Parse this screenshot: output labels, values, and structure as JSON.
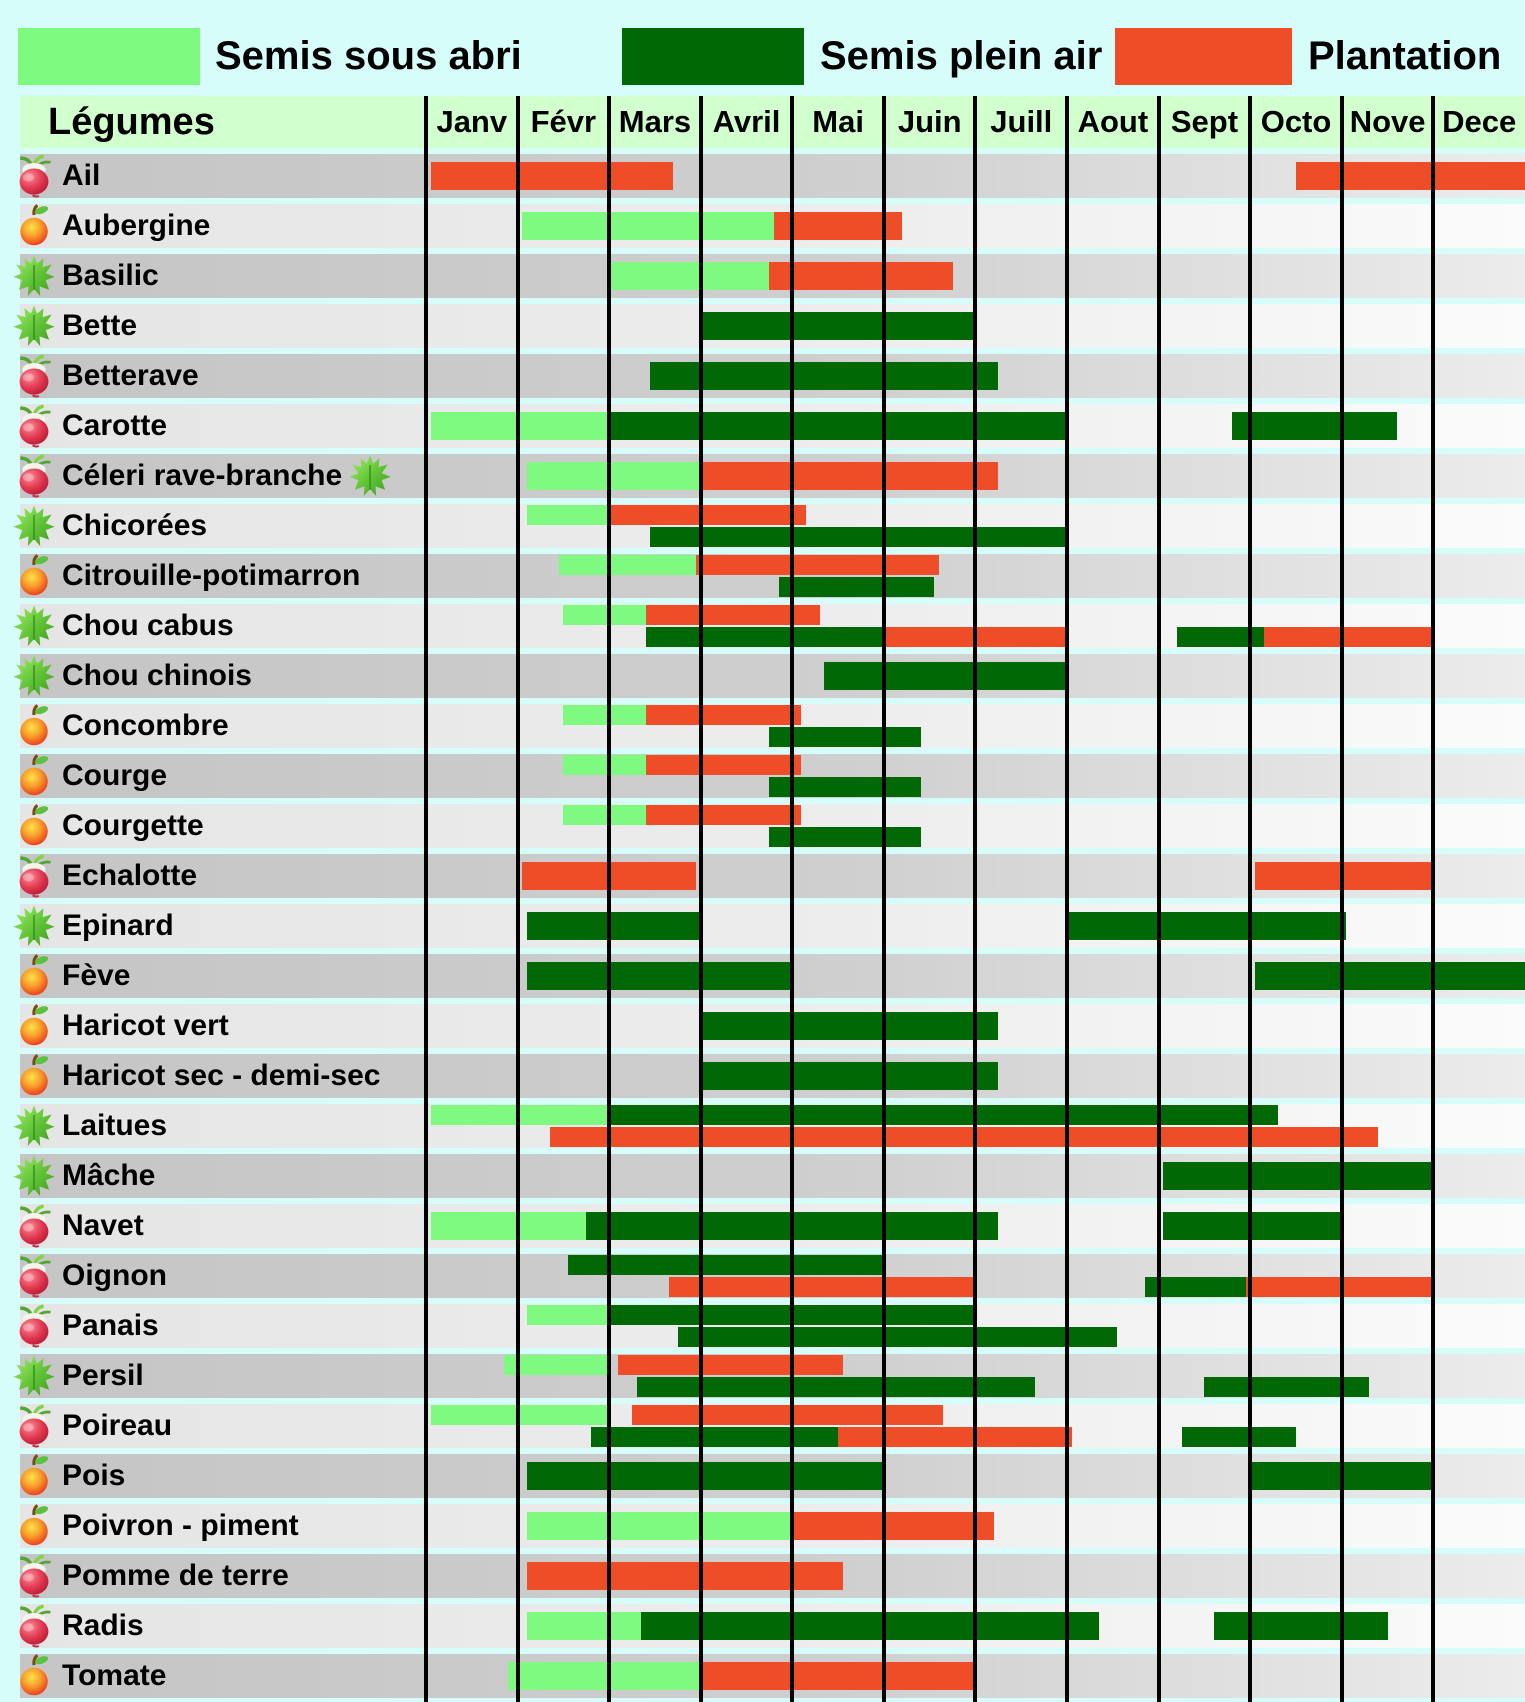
{
  "legend": {
    "items": [
      {
        "label": "Semis sous abri",
        "color": "#7EFA81"
      },
      {
        "label": "Semis plein air",
        "color": "#006905"
      },
      {
        "label": "Plantation",
        "color": "#EF4D27"
      }
    ]
  },
  "header": {
    "title": "Légumes",
    "months": [
      "Janv",
      "Févr",
      "Mars",
      "Avril",
      "Mai",
      "Juin",
      "Juill",
      "Aout",
      "Sept",
      "Octo",
      "Nove",
      "Dece"
    ]
  },
  "colors": {
    "abri": "#7EFA81",
    "air": "#006905",
    "plant": "#EF4D27",
    "page_bg": "#D7FDFA",
    "header_bg": "#D2FFCE",
    "grid_line": "#000000"
  },
  "chart_data": {
    "type": "gantt",
    "title": "Calendrier de semis et plantation des légumes",
    "unit": "months",
    "x_domain": [
      "Janv",
      "Févr",
      "Mars",
      "Avril",
      "Mai",
      "Juin",
      "Juill",
      "Aout",
      "Sept",
      "Octo",
      "Nove",
      "Dece"
    ],
    "categories": {
      "abri": "Semis sous abri",
      "air": "Semis plein air",
      "plant": "Plantation"
    },
    "rows": [
      {
        "name": "Ail",
        "icon": "radish",
        "lines": 1,
        "bars": [
          {
            "cat": "plant",
            "start": 0.05,
            "end": 2.7
          },
          {
            "cat": "plant",
            "start": 9.5,
            "end": 12
          }
        ]
      },
      {
        "name": "Aubergine",
        "icon": "apple",
        "lines": 1,
        "bars": [
          {
            "cat": "abri",
            "start": 1.05,
            "end": 3.8
          },
          {
            "cat": "plant",
            "start": 3.8,
            "end": 5.2
          }
        ]
      },
      {
        "name": "Basilic",
        "icon": "leaf",
        "lines": 1,
        "bars": [
          {
            "cat": "abri",
            "start": 2.0,
            "end": 3.75
          },
          {
            "cat": "plant",
            "start": 3.75,
            "end": 5.75
          }
        ]
      },
      {
        "name": "Bette",
        "icon": "leaf",
        "lines": 1,
        "bars": [
          {
            "cat": "air",
            "start": 3.0,
            "end": 6.0
          }
        ]
      },
      {
        "name": "Betterave",
        "icon": "radish",
        "lines": 1,
        "bars": [
          {
            "cat": "air",
            "start": 2.45,
            "end": 6.25
          }
        ]
      },
      {
        "name": "Carotte",
        "icon": "radish",
        "lines": 1,
        "bars": [
          {
            "cat": "abri",
            "start": 0.05,
            "end": 2.0
          },
          {
            "cat": "air",
            "start": 2.0,
            "end": 7.0
          },
          {
            "cat": "air",
            "start": 8.8,
            "end": 10.6
          }
        ]
      },
      {
        "name": "Céleri rave-branche",
        "icon": "radish",
        "trailing_icon": "leaf",
        "lines": 1,
        "bars": [
          {
            "cat": "abri",
            "start": 1.1,
            "end": 3.0
          },
          {
            "cat": "plant",
            "start": 3.0,
            "end": 6.25
          }
        ]
      },
      {
        "name": "Chicorées",
        "icon": "leaf",
        "lines": 2,
        "bars": [
          {
            "cat": "abri",
            "start": 1.1,
            "end": 2.0,
            "line": 0
          },
          {
            "cat": "plant",
            "start": 2.0,
            "end": 4.15,
            "line": 0
          },
          {
            "cat": "air",
            "start": 2.45,
            "end": 7.0,
            "line": 1
          }
        ]
      },
      {
        "name": "Citrouille-potimarron",
        "icon": "apple",
        "lines": 2,
        "bars": [
          {
            "cat": "abri",
            "start": 1.45,
            "end": 2.95,
            "line": 0
          },
          {
            "cat": "plant",
            "start": 2.95,
            "end": 5.6,
            "line": 0
          },
          {
            "cat": "air",
            "start": 3.85,
            "end": 5.55,
            "line": 1
          }
        ]
      },
      {
        "name": "Chou cabus",
        "icon": "leaf",
        "lines": 2,
        "bars": [
          {
            "cat": "abri",
            "start": 1.5,
            "end": 2.4,
            "line": 0
          },
          {
            "cat": "plant",
            "start": 2.4,
            "end": 4.3,
            "line": 0
          },
          {
            "cat": "air",
            "start": 2.4,
            "end": 5.0,
            "line": 1
          },
          {
            "cat": "plant",
            "start": 5.0,
            "end": 7.0,
            "line": 1
          },
          {
            "cat": "air",
            "start": 8.2,
            "end": 9.15,
            "line": 1
          },
          {
            "cat": "plant",
            "start": 9.15,
            "end": 11.0,
            "line": 1
          }
        ]
      },
      {
        "name": "Chou chinois",
        "icon": "leaf",
        "lines": 1,
        "bars": [
          {
            "cat": "air",
            "start": 4.35,
            "end": 7.0
          }
        ]
      },
      {
        "name": "Concombre",
        "icon": "apple",
        "lines": 2,
        "bars": [
          {
            "cat": "abri",
            "start": 1.5,
            "end": 2.4,
            "line": 0
          },
          {
            "cat": "plant",
            "start": 2.4,
            "end": 4.1,
            "line": 0
          },
          {
            "cat": "air",
            "start": 3.75,
            "end": 5.4,
            "line": 1
          }
        ]
      },
      {
        "name": "Courge",
        "icon": "apple",
        "lines": 2,
        "bars": [
          {
            "cat": "abri",
            "start": 1.5,
            "end": 2.4,
            "line": 0
          },
          {
            "cat": "plant",
            "start": 2.4,
            "end": 4.1,
            "line": 0
          },
          {
            "cat": "air",
            "start": 3.75,
            "end": 5.4,
            "line": 1
          }
        ]
      },
      {
        "name": "Courgette",
        "icon": "apple",
        "lines": 2,
        "bars": [
          {
            "cat": "abri",
            "start": 1.5,
            "end": 2.4,
            "line": 0
          },
          {
            "cat": "plant",
            "start": 2.4,
            "end": 4.1,
            "line": 0
          },
          {
            "cat": "air",
            "start": 3.75,
            "end": 5.4,
            "line": 1
          }
        ]
      },
      {
        "name": "Echalotte",
        "icon": "radish",
        "lines": 1,
        "bars": [
          {
            "cat": "plant",
            "start": 1.05,
            "end": 2.95
          },
          {
            "cat": "plant",
            "start": 9.05,
            "end": 11.0
          }
        ]
      },
      {
        "name": "Epinard",
        "icon": "leaf",
        "lines": 1,
        "bars": [
          {
            "cat": "air",
            "start": 1.1,
            "end": 3.0
          },
          {
            "cat": "air",
            "start": 7.0,
            "end": 10.05
          }
        ]
      },
      {
        "name": "Fève",
        "icon": "apple",
        "lines": 1,
        "bars": [
          {
            "cat": "air",
            "start": 1.1,
            "end": 4.0
          },
          {
            "cat": "air",
            "start": 9.05,
            "end": 12
          }
        ]
      },
      {
        "name": "Haricot vert",
        "icon": "apple",
        "lines": 1,
        "bars": [
          {
            "cat": "air",
            "start": 3.0,
            "end": 6.25
          }
        ]
      },
      {
        "name": "Haricot sec - demi-sec",
        "icon": "apple",
        "lines": 1,
        "bars": [
          {
            "cat": "air",
            "start": 3.0,
            "end": 6.25
          }
        ]
      },
      {
        "name": "Laitues",
        "icon": "leaf",
        "lines": 2,
        "bars": [
          {
            "cat": "abri",
            "start": 0.05,
            "end": 2.0,
            "line": 0
          },
          {
            "cat": "air",
            "start": 2.0,
            "end": 9.3,
            "line": 0
          },
          {
            "cat": "plant",
            "start": 1.35,
            "end": 10.4,
            "line": 1
          }
        ]
      },
      {
        "name": "Mâche",
        "icon": "leaf",
        "lines": 1,
        "bars": [
          {
            "cat": "air",
            "start": 8.05,
            "end": 11.0
          }
        ]
      },
      {
        "name": "Navet",
        "icon": "radish",
        "lines": 1,
        "bars": [
          {
            "cat": "abri",
            "start": 0.05,
            "end": 1.75
          },
          {
            "cat": "air",
            "start": 1.75,
            "end": 6.25
          },
          {
            "cat": "air",
            "start": 8.05,
            "end": 10.0
          }
        ]
      },
      {
        "name": "Oignon",
        "icon": "radish",
        "lines": 2,
        "bars": [
          {
            "cat": "air",
            "start": 1.55,
            "end": 5.0,
            "line": 0
          },
          {
            "cat": "plant",
            "start": 2.65,
            "end": 6.0,
            "line": 1
          },
          {
            "cat": "air",
            "start": 7.85,
            "end": 8.95,
            "line": 1
          },
          {
            "cat": "plant",
            "start": 8.95,
            "end": 11.0,
            "line": 1
          }
        ]
      },
      {
        "name": "Panais",
        "icon": "radish",
        "lines": 2,
        "bars": [
          {
            "cat": "abri",
            "start": 1.1,
            "end": 2.0,
            "line": 0
          },
          {
            "cat": "air",
            "start": 2.0,
            "end": 6.0,
            "line": 0
          },
          {
            "cat": "air",
            "start": 2.75,
            "end": 7.55,
            "line": 1
          }
        ]
      },
      {
        "name": "Persil",
        "icon": "leaf",
        "lines": 2,
        "bars": [
          {
            "cat": "abri",
            "start": 0.85,
            "end": 2.0,
            "line": 0
          },
          {
            "cat": "plant",
            "start": 2.1,
            "end": 4.55,
            "line": 0
          },
          {
            "cat": "air",
            "start": 2.3,
            "end": 6.65,
            "line": 1
          },
          {
            "cat": "air",
            "start": 8.5,
            "end": 10.3,
            "line": 1
          }
        ]
      },
      {
        "name": "Poireau",
        "icon": "radish",
        "lines": 2,
        "bars": [
          {
            "cat": "abri",
            "start": 0.05,
            "end": 2.0,
            "line": 0
          },
          {
            "cat": "plant",
            "start": 2.25,
            "end": 5.65,
            "line": 0
          },
          {
            "cat": "air",
            "start": 1.8,
            "end": 4.5,
            "line": 1
          },
          {
            "cat": "plant",
            "start": 4.5,
            "end": 7.05,
            "line": 1
          },
          {
            "cat": "air",
            "start": 8.25,
            "end": 9.5,
            "line": 1
          }
        ]
      },
      {
        "name": "Pois",
        "icon": "apple",
        "lines": 1,
        "bars": [
          {
            "cat": "air",
            "start": 1.1,
            "end": 5.0
          },
          {
            "cat": "air",
            "start": 9.0,
            "end": 11.0
          }
        ]
      },
      {
        "name": "Poivron - piment",
        "icon": "apple",
        "lines": 1,
        "bars": [
          {
            "cat": "abri",
            "start": 1.1,
            "end": 4.0
          },
          {
            "cat": "plant",
            "start": 4.0,
            "end": 6.2
          }
        ]
      },
      {
        "name": "Pomme de terre",
        "icon": "radish",
        "lines": 1,
        "bars": [
          {
            "cat": "plant",
            "start": 1.1,
            "end": 4.55
          }
        ]
      },
      {
        "name": "Radis",
        "icon": "radish",
        "lines": 1,
        "bars": [
          {
            "cat": "abri",
            "start": 1.1,
            "end": 2.35
          },
          {
            "cat": "air",
            "start": 2.35,
            "end": 7.35
          },
          {
            "cat": "air",
            "start": 8.6,
            "end": 10.5
          }
        ]
      },
      {
        "name": "Tomate",
        "icon": "apple",
        "lines": 1,
        "bars": [
          {
            "cat": "abri",
            "start": 0.9,
            "end": 3.0
          },
          {
            "cat": "plant",
            "start": 3.0,
            "end": 6.0
          }
        ]
      }
    ]
  }
}
